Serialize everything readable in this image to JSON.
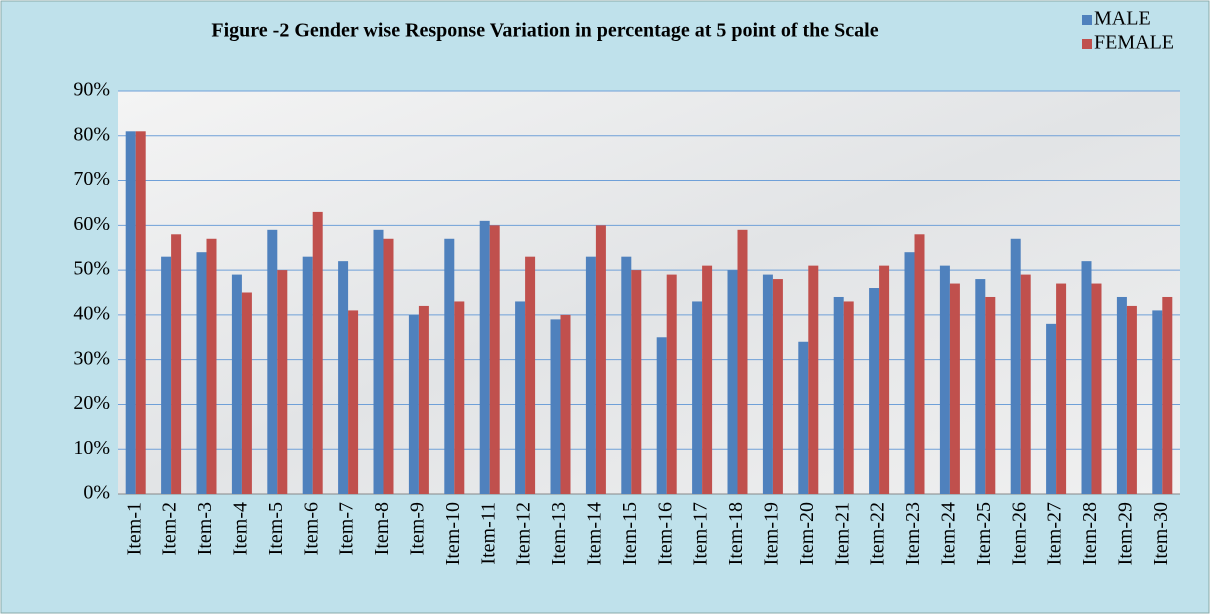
{
  "chart_data": {
    "type": "bar",
    "title": "Figure -2 Gender wise Response Variation in percentage at 5 point of the Scale",
    "categories": [
      "Item-1",
      "Item-2",
      "Item-3",
      "Item-4",
      "Item-5",
      "Item-6",
      "Item-7",
      "Item-8",
      "Item-9",
      "Item-10",
      "Item-11",
      "Item-12",
      "Item-13",
      "Item-14",
      "Item-15",
      "Item-16",
      "Item-17",
      "Item-18",
      "Item-19",
      "Item-20",
      "Item-21",
      "Item-22",
      "Item-23",
      "Item-24",
      "Item-25",
      "Item-26",
      "Item-27",
      "Item-28",
      "Item-29",
      "Item-30"
    ],
    "series": [
      {
        "name": "MALE",
        "color": "#4f81bd",
        "values": [
          81,
          53,
          54,
          49,
          59,
          53,
          52,
          59,
          40,
          57,
          61,
          43,
          39,
          53,
          53,
          35,
          43,
          50,
          49,
          34,
          44,
          46,
          54,
          51,
          48,
          57,
          38,
          52,
          44,
          41
        ]
      },
      {
        "name": "FEMALE",
        "color": "#c0504d",
        "values": [
          81,
          58,
          57,
          45,
          50,
          63,
          41,
          57,
          42,
          43,
          60,
          53,
          40,
          60,
          50,
          49,
          51,
          59,
          48,
          51,
          43,
          51,
          58,
          47,
          44,
          49,
          47,
          47,
          42,
          44
        ]
      }
    ],
    "ylim": [
      0,
      90
    ],
    "yticks": [
      {
        "value": 0,
        "label": "0%"
      },
      {
        "value": 10,
        "label": "10%"
      },
      {
        "value": 20,
        "label": "20%"
      },
      {
        "value": 30,
        "label": "30%"
      },
      {
        "value": 40,
        "label": "40%"
      },
      {
        "value": 50,
        "label": "50%"
      },
      {
        "value": 60,
        "label": "60%"
      },
      {
        "value": 70,
        "label": "70%"
      },
      {
        "value": 80,
        "label": "80%"
      },
      {
        "value": 90,
        "label": "90%"
      }
    ],
    "grid": true,
    "legend": "top-right"
  }
}
